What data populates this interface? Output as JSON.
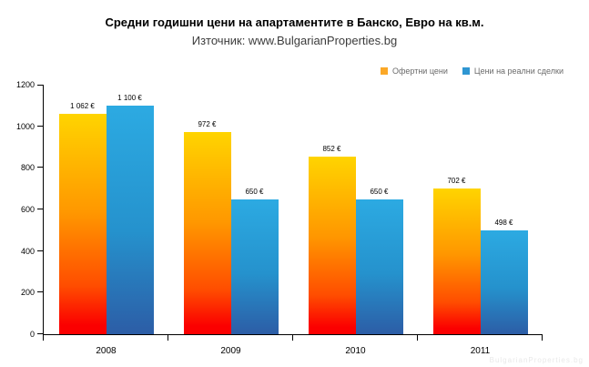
{
  "header": {
    "title": "Средни годишни цени на апартаментите в Банско, Евро на кв.м.",
    "subtitle": "Източник: www.BulgarianProperties.bg"
  },
  "watermark": "BulgarianProperties.bg",
  "colors": {
    "offer_top": "#ffd400",
    "offer_mid": "#ff9700",
    "offer_deep": "#ff4d00",
    "offer_bottom": "#fb0000",
    "deal_top": "#2caae2",
    "deal_mid": "#2592cd",
    "deal_bottom": "#2c5da6",
    "legend_offer": "#fba827",
    "legend_deal": "#2f96d2",
    "legend_text": "#6b6b6b",
    "watermark_text": "#e9e9e9",
    "axis": "#000000"
  },
  "chart_data": {
    "type": "bar",
    "title": "Средни годишни цени на апартаментите в Банско, Евро на кв.м.",
    "subtitle": "Източник: www.BulgarianProperties.bg",
    "categories": [
      "2008",
      "2009",
      "2010",
      "2011"
    ],
    "series": [
      {
        "name": "Офертни цени",
        "values": [
          1062,
          972,
          852,
          702
        ],
        "labels": [
          "1 062 €",
          "972 €",
          "852 €",
          "702 €"
        ]
      },
      {
        "name": "Цени на реални сделки",
        "values": [
          1100,
          650,
          650,
          498
        ],
        "labels": [
          "1 100 €",
          "650 €",
          "650 €",
          "498 €"
        ]
      }
    ],
    "xlabel": "",
    "ylabel": "",
    "ylim": [
      0,
      1200
    ],
    "ytick_step": 200,
    "yticks": [
      0,
      200,
      400,
      600,
      800,
      1000,
      1200
    ],
    "grid": false,
    "legend_position": "top-right"
  }
}
